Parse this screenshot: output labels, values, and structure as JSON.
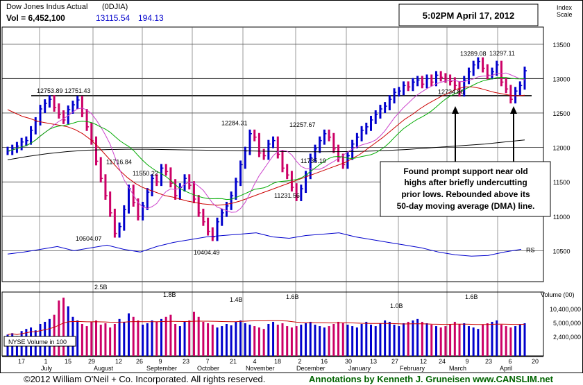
{
  "chart_data": {
    "type": "ohlc-bar",
    "title": "Dow Jones Indus Actual",
    "symbol": "(0DJIA)",
    "vol_label": "Vol = 6,452,100",
    "last_price": "13115.54",
    "change": "194.13",
    "timestamp": "5:02PM April 17, 2012",
    "index_scale_label": "Index Scale",
    "y_ticks": [
      13500,
      13000,
      12500,
      12000,
      11500,
      11000,
      10500
    ],
    "ylim": [
      10050,
      13750
    ],
    "volume_label": "Volume (00)",
    "volume_ticks": [
      "10,400,000",
      "5,000,000",
      "2,400,000"
    ],
    "volume_box_label": "NYSE Volume in 100",
    "rs_label": "RS",
    "x_tick_labels": [
      "17",
      "1",
      "15",
      "29",
      "12",
      "26",
      "9",
      "23",
      "7",
      "21",
      "4",
      "18",
      "2",
      "16",
      "30",
      "13",
      "27",
      "12",
      "24",
      "9",
      "23",
      "6",
      "20"
    ],
    "month_labels": [
      "July",
      "August",
      "September",
      "October",
      "November",
      "December",
      "January",
      "February",
      "March",
      "April"
    ],
    "price_annotations": [
      {
        "text": "12753.89",
        "value": 12753.89
      },
      {
        "text": "12751.43",
        "value": 12751.43
      },
      {
        "text": "10604.07",
        "value": 10604.07
      },
      {
        "text": "11716.84",
        "value": 11716.84
      },
      {
        "text": "11550.22",
        "value": 11550.22
      },
      {
        "text": "10404.49",
        "value": 10404.49
      },
      {
        "text": "12284.31",
        "value": 12284.31
      },
      {
        "text": "11231.56",
        "value": 11231.56
      },
      {
        "text": "12257.67",
        "value": 12257.67
      },
      {
        "text": "11735.19",
        "value": 11735.19
      },
      {
        "text": "12734.86",
        "value": 12734.86
      },
      {
        "text": "13289.08",
        "value": 13289.08
      },
      {
        "text": "13297.11",
        "value": 13297.11
      }
    ],
    "volume_annotations": [
      "2.5B",
      "1.8B",
      "1.4B",
      "1.6B",
      "1.0B",
      "1.6B"
    ],
    "support_line_value": 12753,
    "annotation_text": [
      "Found prompt support near old",
      "highs after briefly undercutting",
      "prior lows. Rebounded above its",
      "50-day moving average (DMA) line."
    ],
    "price_series": [
      11950,
      11980,
      12020,
      12080,
      12100,
      12250,
      12380,
      12560,
      12640,
      12700,
      12580,
      12480,
      12400,
      12550,
      12620,
      12690,
      12500,
      12300,
      12100,
      11800,
      11550,
      11300,
      11050,
      10750,
      10850,
      11100,
      11400,
      11200,
      11000,
      11150,
      11350,
      11550,
      11500,
      11700,
      11650,
      11480,
      11300,
      11420,
      11550,
      11450,
      11250,
      11050,
      10920,
      10780,
      10700,
      10920,
      11050,
      11150,
      11300,
      11500,
      11750,
      11950,
      12200,
      12150,
      11920,
      11880,
      12050,
      12100,
      11900,
      11700,
      11600,
      11420,
      11280,
      11400,
      11600,
      11850,
      11980,
      12100,
      12200,
      12150,
      11980,
      11850,
      11750,
      11880,
      12050,
      12150,
      12250,
      12300,
      12400,
      12480,
      12560,
      12600,
      12700,
      12800,
      12820,
      12900,
      12880,
      12950,
      12980,
      12920,
      13000,
      12950,
      13050,
      13020,
      13000,
      12960,
      12900,
      12800,
      12980,
      13100,
      13200,
      13250,
      13150,
      13050,
      13100,
      13200,
      12950,
      12850,
      12700,
      12820,
      12900,
      13115
    ],
    "sma50_series": [
      12550,
      12500,
      12450,
      12420,
      12380,
      12360,
      12340,
      12320,
      12300,
      12260,
      12200,
      12120,
      12020,
      11900,
      11780,
      11660,
      11560,
      11480,
      11420,
      11380,
      11340,
      11300,
      11280,
      11250,
      11220,
      11200,
      11180,
      11170,
      11160,
      11170,
      11190,
      11220,
      11260,
      11300,
      11340,
      11380,
      11420,
      11460,
      11500,
      11540,
      11580,
      11620,
      11660,
      11700,
      11740,
      11780,
      11840,
      11900,
      11980,
      12060,
      12140,
      12230,
      12320,
      12410,
      12480,
      12560,
      12630,
      12690,
      12750,
      12800,
      12850,
      12880,
      12880,
      12860,
      12830,
      12800,
      12780,
      12760,
      12750,
      12760
    ],
    "sma200_series": [
      11820,
      11870,
      11910,
      11940,
      11960,
      11970,
      11975,
      11975,
      11970,
      11965,
      11960,
      11955,
      11950,
      11945,
      11940,
      11938,
      11938,
      11940,
      11945,
      11955,
      11970,
      11990,
      12010,
      12030,
      12050,
      12080,
      12110
    ],
    "rs_series": [
      10450,
      10480,
      10520,
      10560,
      10500,
      10540,
      10580,
      10520,
      10480,
      10560,
      10620,
      10660,
      10700,
      10720,
      10740,
      10760,
      10700,
      10680,
      10720,
      10740,
      10760,
      10700,
      10660,
      10620,
      10580,
      10540,
      10480,
      10440,
      10420,
      10430,
      10480,
      10520
    ],
    "volume_series": [
      30,
      32,
      28,
      35,
      38,
      40,
      36,
      45,
      48,
      52,
      58,
      78,
      82,
      70,
      55,
      50,
      45,
      42,
      48,
      50,
      44,
      46,
      40,
      45,
      52,
      48,
      60,
      55,
      50,
      44,
      46,
      50,
      48,
      52,
      55,
      58,
      45,
      42,
      48,
      50,
      62,
      55,
      48,
      46,
      44,
      40,
      42,
      45,
      43,
      48,
      50,
      46,
      44,
      42,
      40,
      38,
      45,
      48,
      44,
      46,
      42,
      40,
      42,
      44,
      46,
      48,
      44,
      42,
      40,
      42,
      45,
      48,
      46,
      44,
      42,
      40,
      45,
      48,
      44,
      42,
      46,
      50,
      48,
      44,
      42,
      46,
      48,
      50,
      52,
      48,
      46,
      44,
      42,
      40,
      42,
      44,
      48,
      45,
      46,
      42,
      40,
      38,
      44,
      46,
      48,
      50,
      44,
      42,
      40,
      42,
      44,
      46
    ],
    "colors": {
      "up": "#0000cc",
      "down": "#cc0066",
      "sma50": "#cc0000",
      "sma21": "#00aa00",
      "sma10": "#cc44cc",
      "sma200": "#000000",
      "rs": "#0000cc",
      "volume_avg": "#cc0000",
      "footer_left": "#000000",
      "footer_right": "#006400"
    }
  },
  "footer": {
    "copyright": "©2012 William O'Neil + Co. Incorporated. All rights reserved.",
    "annotations_credit": "Annotations by Kenneth J. Gruneisen www.CANSLIM.net"
  }
}
